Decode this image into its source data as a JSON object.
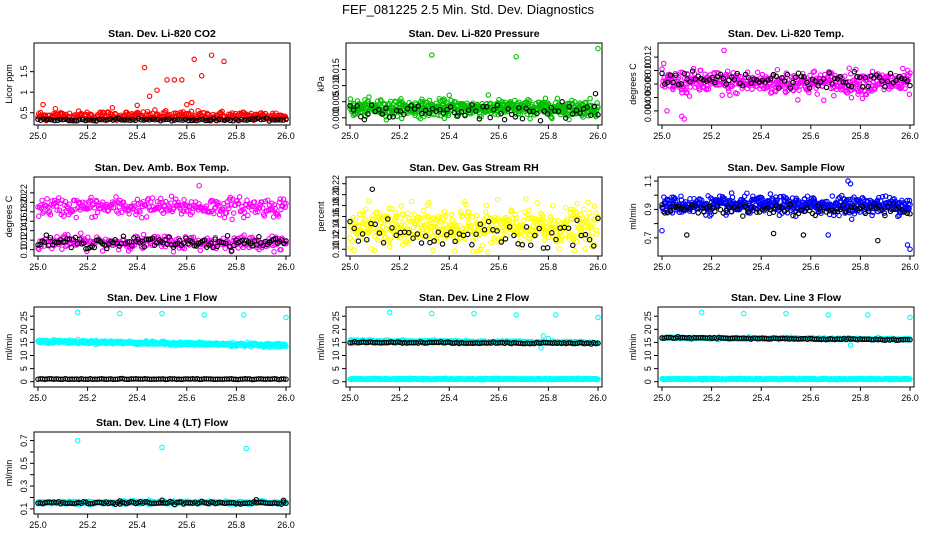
{
  "figure_title": "FEF_081225  2.5 Min. Std. Dev. Diagnostics",
  "colors": {
    "black": "#000000",
    "red": "#ff0000",
    "green": "#00c000",
    "magenta": "#ff00ff",
    "yellow": "#ffff00",
    "blue": "#0000ff",
    "cyan": "#00ffff"
  },
  "chart_data": [
    {
      "type": "scatter",
      "title": "Stan. Dev. Li-820 CO2",
      "xlabel": "",
      "ylabel": "Licor ppm",
      "xlim": [
        25.0,
        26.0
      ],
      "ylim": [
        0.3,
        2.1
      ],
      "xticks": [
        25.0,
        25.2,
        25.4,
        25.6,
        25.8,
        26.0
      ],
      "yticks": [
        0.5,
        1.0,
        1.5
      ],
      "grid": false,
      "series": [
        {
          "color": "red",
          "count": 300,
          "base": 0.42,
          "spread": 0.12,
          "outliers": [
            [
              25.43,
              1.6
            ],
            [
              25.45,
              0.9
            ],
            [
              25.48,
              1.05
            ],
            [
              25.52,
              1.3
            ],
            [
              25.55,
              1.3
            ],
            [
              25.58,
              1.3
            ],
            [
              25.63,
              1.8
            ],
            [
              25.66,
              1.4
            ],
            [
              25.7,
              1.9
            ],
            [
              25.75,
              1.75
            ],
            [
              25.6,
              0.7
            ],
            [
              25.62,
              0.75
            ],
            [
              25.4,
              0.68
            ],
            [
              25.02,
              0.7
            ],
            [
              25.07,
              0.6
            ],
            [
              25.3,
              0.62
            ]
          ]
        },
        {
          "color": "black",
          "count": 90,
          "base": 0.33,
          "spread": 0.03,
          "outliers": []
        }
      ]
    },
    {
      "type": "scatter",
      "title": "Stan. Dev. Li-820 Pressure",
      "xlabel": "",
      "ylabel": "kPa",
      "xlim": [
        25.0,
        26.0
      ],
      "ylim": [
        -0.001,
        0.022
      ],
      "xticks": [
        25.0,
        25.2,
        25.4,
        25.6,
        25.8,
        26.0
      ],
      "yticks": [
        0.0,
        0.005,
        0.01,
        0.015
      ],
      "ytickfmt": [
        0.0,
        0.005,
        0.01,
        0.015
      ],
      "grid": false,
      "series": [
        {
          "color": "green",
          "count": 600,
          "base": 0.003,
          "spread": 0.0025,
          "outliers": [
            [
              25.33,
              0.0195
            ],
            [
              25.67,
              0.019
            ],
            [
              26.0,
              0.0215
            ],
            [
              25.4,
              0.007
            ]
          ]
        },
        {
          "color": "black",
          "count": 70,
          "base": 0.002,
          "spread": 0.0025,
          "outliers": [
            [
              25.99,
              0.0075
            ]
          ]
        }
      ]
    },
    {
      "type": "scatter",
      "title": "Stan. Dev. Li-820 Temp.",
      "xlabel": "",
      "ylabel": "degrees C",
      "xlim": [
        25.0,
        26.0
      ],
      "ylim": [
        0.0025,
        0.0135
      ],
      "xticks": [
        25.0,
        25.2,
        25.4,
        25.6,
        25.8,
        26.0
      ],
      "yticks": [
        0.004,
        0.006,
        0.008,
        0.01,
        0.012
      ],
      "ytickfmt": [
        "0.004",
        "0.006",
        "0.008",
        "0.010",
        "0.012"
      ],
      "grid": false,
      "series": [
        {
          "color": "magenta",
          "count": 450,
          "base": 0.0082,
          "spread": 0.0018,
          "outliers": [
            [
              25.09,
              0.0028
            ],
            [
              25.08,
              0.0032
            ],
            [
              25.25,
              0.013
            ],
            [
              25.02,
              0.004
            ]
          ]
        },
        {
          "color": "black",
          "count": 90,
          "base": 0.0085,
          "spread": 0.0012,
          "outliers": []
        }
      ]
    },
    {
      "type": "scatter",
      "title": "Stan. Dev. Amb. Box Temp.",
      "xlabel": "",
      "ylabel": "degrees C",
      "xlim": [
        25.0,
        26.0
      ],
      "ylim": [
        0.095,
        0.245
      ],
      "xticks": [
        25.0,
        25.2,
        25.4,
        25.6,
        25.8,
        26.0
      ],
      "yticks": [
        0.1,
        0.12,
        0.14,
        0.16,
        0.18,
        0.2,
        0.22
      ],
      "ytickfmt": [
        "0.10",
        "0.12",
        "0.14",
        "0.16",
        "0.18",
        "0.20",
        "0.22"
      ],
      "grid": false,
      "series": [
        {
          "color": "magenta",
          "count": 300,
          "base": 0.19,
          "spread": 0.02,
          "outliers": [
            [
              25.65,
              0.235
            ]
          ]
        },
        {
          "color": "magenta",
          "count": 250,
          "base": 0.115,
          "spread": 0.015,
          "outliers": []
        },
        {
          "color": "black",
          "count": 120,
          "base": 0.115,
          "spread": 0.012,
          "outliers": []
        }
      ]
    },
    {
      "type": "scatter",
      "title": "Stan. Dev. Gas Stream RH",
      "xlabel": "",
      "ylabel": "percent",
      "xlim": [
        25.0,
        26.0
      ],
      "ylim": [
        0.095,
        0.225
      ],
      "xticks": [
        25.0,
        25.2,
        25.4,
        25.6,
        25.8,
        26.0
      ],
      "yticks": [
        0.1,
        0.12,
        0.14,
        0.16,
        0.18,
        0.2,
        0.22
      ],
      "ytickfmt": [
        "0.10",
        "0.12",
        "0.14",
        "0.16",
        "0.18",
        "0.20",
        "0.22"
      ],
      "grid": false,
      "series": [
        {
          "color": "yellow",
          "count": 500,
          "base": 0.14,
          "spread": 0.035,
          "outliers": []
        },
        {
          "color": "black",
          "count": 60,
          "base": 0.13,
          "spread": 0.03,
          "outliers": [
            [
              25.09,
              0.21
            ]
          ]
        }
      ]
    },
    {
      "type": "scatter",
      "title": "Stan. Dev. Sample Flow",
      "xlabel": "",
      "ylabel": "ml/min",
      "xlim": [
        25.0,
        26.0
      ],
      "ylim": [
        0.6,
        1.1
      ],
      "xticks": [
        25.0,
        25.2,
        25.4,
        25.6,
        25.8,
        26.0
      ],
      "yticks": [
        0.7,
        0.8,
        0.9,
        1.0,
        1.1
      ],
      "ytickfmt": [
        "0.7",
        "",
        "0.9",
        "",
        "1.1"
      ],
      "grid": false,
      "series": [
        {
          "color": "blue",
          "count": 550,
          "base": 0.93,
          "spread": 0.06,
          "outliers": [
            [
              25.0,
              0.75
            ],
            [
              25.75,
              1.1
            ],
            [
              25.76,
              1.08
            ],
            [
              26.0,
              0.62
            ],
            [
              25.99,
              0.65
            ],
            [
              25.67,
              0.72
            ]
          ]
        },
        {
          "color": "black",
          "count": 90,
          "base": 0.9,
          "spread": 0.05,
          "outliers": [
            [
              25.87,
              0.68
            ],
            [
              25.57,
              0.72
            ],
            [
              25.1,
              0.72
            ],
            [
              25.45,
              0.73
            ]
          ]
        }
      ]
    },
    {
      "type": "scatter",
      "title": "Stan. Dev. Line 1 Flow",
      "xlabel": "",
      "ylabel": "ml/min",
      "xlim": [
        25.0,
        26.0
      ],
      "ylim": [
        -0.5,
        27
      ],
      "xticks": [
        25.0,
        25.2,
        25.4,
        25.6,
        25.8,
        26.0
      ],
      "yticks": [
        0,
        5,
        10,
        15,
        20,
        25
      ],
      "grid": false,
      "series": [
        {
          "color": "cyan",
          "count": 500,
          "base": 15.5,
          "spread": 0.6,
          "trend": -1.6,
          "outliers": [
            [
              25.16,
              26.5
            ],
            [
              25.33,
              26
            ],
            [
              25.5,
              26
            ],
            [
              25.67,
              25.5
            ],
            [
              25.83,
              25.5
            ],
            [
              26.0,
              24.5
            ],
            [
              25.78,
              13.5
            ]
          ]
        },
        {
          "color": "black",
          "count": 110,
          "base": 1.0,
          "spread": 0.15,
          "trend": 0,
          "outliers": []
        }
      ]
    },
    {
      "type": "scatter",
      "title": "Stan. Dev. Line 2 Flow",
      "xlabel": "",
      "ylabel": "ml/min",
      "xlim": [
        25.0,
        26.0
      ],
      "ylim": [
        -0.5,
        27
      ],
      "xticks": [
        25.0,
        25.2,
        25.4,
        25.6,
        25.8,
        26.0
      ],
      "yticks": [
        0,
        5,
        10,
        15,
        20,
        25
      ],
      "grid": false,
      "series": [
        {
          "color": "cyan",
          "count": 500,
          "base": 1.0,
          "spread": 0.2,
          "trend": 0,
          "outliers": [
            [
              25.16,
              26.5
            ],
            [
              25.33,
              26
            ],
            [
              25.5,
              26
            ],
            [
              25.67,
              25.5
            ],
            [
              25.83,
              25.5
            ],
            [
              26.0,
              24.5
            ],
            [
              25.78,
              17.5
            ],
            [
              25.8,
              16.5
            ],
            [
              25.77,
              13
            ]
          ]
        },
        {
          "color": "cyan",
          "count": 300,
          "base": 15.6,
          "spread": 0.4,
          "trend": -0.6,
          "outliers": []
        },
        {
          "color": "black",
          "count": 110,
          "base": 15.0,
          "spread": 0.3,
          "trend": -0.3,
          "outliers": []
        }
      ]
    },
    {
      "type": "scatter",
      "title": "Stan. Dev. Line 3 Flow",
      "xlabel": "",
      "ylabel": "ml/min",
      "xlim": [
        25.0,
        26.0
      ],
      "ylim": [
        -0.5,
        27
      ],
      "xticks": [
        25.0,
        25.2,
        25.4,
        25.6,
        25.8,
        26.0
      ],
      "yticks": [
        0,
        5,
        10,
        15,
        20,
        25
      ],
      "grid": false,
      "series": [
        {
          "color": "cyan",
          "count": 500,
          "base": 1.0,
          "spread": 0.2,
          "trend": 0,
          "outliers": [
            [
              25.16,
              26.5
            ],
            [
              25.33,
              26
            ],
            [
              25.5,
              26
            ],
            [
              25.67,
              25.5
            ],
            [
              25.83,
              25.5
            ],
            [
              26.0,
              24.5
            ],
            [
              25.76,
              14
            ]
          ]
        },
        {
          "color": "cyan",
          "count": 250,
          "base": 16.8,
          "spread": 0.4,
          "trend": -0.6,
          "outliers": []
        },
        {
          "color": "black",
          "count": 110,
          "base": 16.8,
          "spread": 0.3,
          "trend": -0.8,
          "outliers": []
        }
      ]
    },
    {
      "type": "scatter",
      "title": "Stan. Dev. Line 4 (LT) Flow",
      "xlabel": "",
      "ylabel": "ml/min",
      "xlim": [
        25.0,
        26.0
      ],
      "ylim": [
        0.09,
        0.74
      ],
      "xticks": [
        25.0,
        25.2,
        25.4,
        25.6,
        25.8,
        26.0
      ],
      "yticks": [
        0.1,
        0.2,
        0.3,
        0.4,
        0.5,
        0.6,
        0.7
      ],
      "ytickfmt": [
        "0.1",
        "",
        "0.3",
        "",
        "0.5",
        "",
        "0.7"
      ],
      "grid": false,
      "series": [
        {
          "color": "cyan",
          "count": 500,
          "base": 0.155,
          "spread": 0.012,
          "trend": 0,
          "outliers": [
            [
              25.16,
              0.7
            ],
            [
              25.5,
              0.64
            ],
            [
              25.84,
              0.63
            ]
          ]
        },
        {
          "color": "black",
          "count": 110,
          "base": 0.152,
          "spread": 0.012,
          "trend": 0,
          "outliers": [
            [
              25.99,
              0.175
            ],
            [
              25.88,
              0.18
            ],
            [
              25.33,
              0.17
            ],
            [
              25.5,
              0.175
            ]
          ]
        }
      ]
    }
  ]
}
